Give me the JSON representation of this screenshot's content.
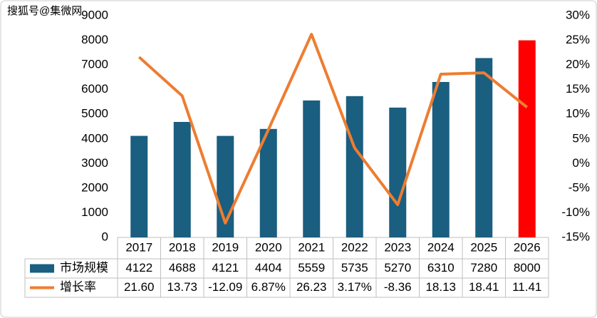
{
  "watermark": "搜狐号@集微网",
  "chart_data": {
    "type": "bar-line",
    "categories": [
      "2017",
      "2018",
      "2019",
      "2020",
      "2021",
      "2022",
      "2023",
      "2024",
      "2025",
      "2026"
    ],
    "series": [
      {
        "name": "市场规模",
        "type": "bar",
        "color": "#1a5e80",
        "point_colors": [
          "#1a5e80",
          "#1a5e80",
          "#1a5e80",
          "#1a5e80",
          "#1a5e80",
          "#1a5e80",
          "#1a5e80",
          "#1a5e80",
          "#1a5e80",
          "#ff0000"
        ],
        "values": [
          4122,
          4688,
          4121,
          4404,
          5559,
          5735,
          5270,
          6310,
          7280,
          8000
        ]
      },
      {
        "name": "增长率",
        "type": "line",
        "axis": "y2",
        "color": "#ed7d31",
        "values": [
          21.6,
          13.73,
          -12.09,
          6.87,
          26.23,
          3.17,
          -8.36,
          18.13,
          18.41,
          11.41
        ],
        "value_labels": [
          "21.60",
          "13.73",
          "-12.09",
          "6.87%",
          "26.23",
          "3.17%",
          "-8.36",
          "18.13",
          "18.41",
          "11.41"
        ]
      }
    ],
    "ylim": [
      0,
      9000
    ],
    "yticks": [
      0,
      1000,
      2000,
      3000,
      4000,
      5000,
      6000,
      7000,
      8000,
      9000
    ],
    "y2lim": [
      -15,
      30
    ],
    "y2ticks": [
      {
        "value": -15,
        "label": "-15%"
      },
      {
        "value": -10,
        "label": "-10%"
      },
      {
        "value": -5,
        "label": "-5%"
      },
      {
        "value": 0,
        "label": "0%"
      },
      {
        "value": 5,
        "label": "5%"
      },
      {
        "value": 10,
        "label": "10%"
      },
      {
        "value": 15,
        "label": "15%"
      },
      {
        "value": 20,
        "label": "20%"
      },
      {
        "value": 25,
        "label": "25%"
      },
      {
        "value": 30,
        "label": "30%"
      }
    ]
  }
}
